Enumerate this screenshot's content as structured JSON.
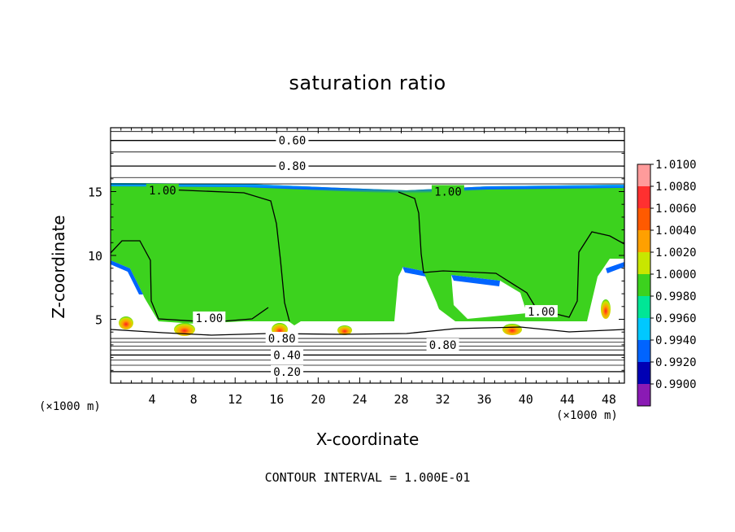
{
  "chart_data": {
    "type": "heatmap",
    "title": "saturation ratio",
    "xlabel": "X-coordinate",
    "ylabel": "Z-coordinate",
    "x_unit_label": "(×1000 m)",
    "xlim": [
      0,
      49.5
    ],
    "ylim": [
      0,
      20
    ],
    "x_ticks": [
      4,
      8,
      12,
      16,
      20,
      24,
      28,
      32,
      36,
      40,
      44,
      48
    ],
    "y_ticks": [
      5,
      10,
      15
    ],
    "footer": "CONTOUR INTERVAL = 1.000E-01",
    "colorbar": {
      "labels": [
        "1.0100",
        "1.0080",
        "1.0060",
        "1.0040",
        "1.0020",
        "1.0000",
        "0.9980",
        "0.9960",
        "0.9940",
        "0.9920",
        "0.9900"
      ],
      "colors": [
        "#ff9b9b",
        "#ff3030",
        "#ff5a00",
        "#ffa000",
        "#c8e600",
        "#3cd21e",
        "#00e696",
        "#00c8ff",
        "#0064ff",
        "#0000b4",
        "#8a1ab4"
      ]
    },
    "contour_labels": [
      {
        "text": "0.60",
        "x": 17.5,
        "y": 19.0
      },
      {
        "text": "0.80",
        "x": 17.5,
        "y": 17.0
      },
      {
        "text": "1.00",
        "x": 5.0,
        "y": 15.1
      },
      {
        "text": "1.00",
        "x": 32.5,
        "y": 15.0
      },
      {
        "text": "1.00",
        "x": 9.5,
        "y": 5.1
      },
      {
        "text": "1.00",
        "x": 41.5,
        "y": 5.6
      },
      {
        "text": "0.80",
        "x": 16.5,
        "y": 3.5
      },
      {
        "text": "0.40",
        "x": 17.0,
        "y": 2.2
      },
      {
        "text": "0.20",
        "x": 17.0,
        "y": 0.9
      },
      {
        "text": "0.80",
        "x": 32.0,
        "y": 3.0
      }
    ]
  }
}
